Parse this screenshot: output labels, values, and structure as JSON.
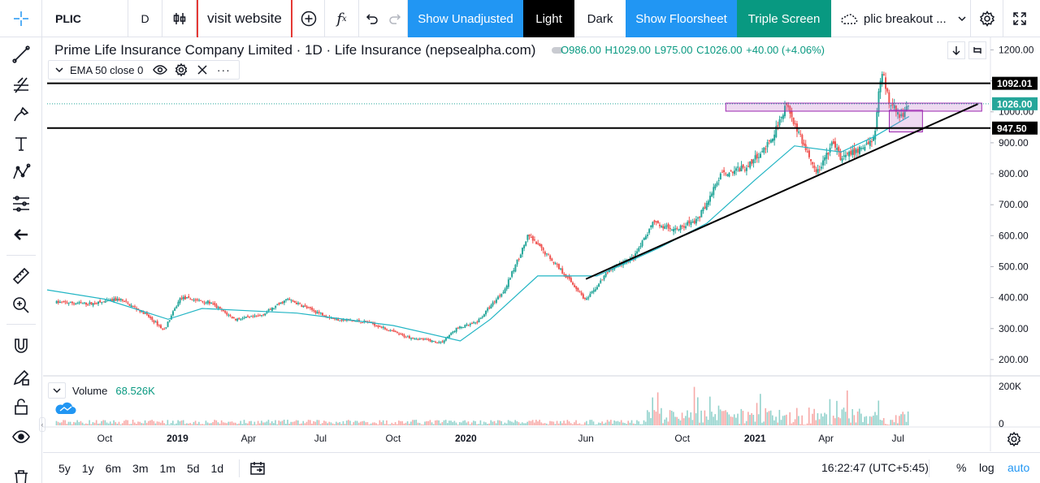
{
  "toolbar": {
    "symbol": "PLIC",
    "interval": "D",
    "visit_website": "visit website",
    "show_unadjusted": "Show Unadjusted",
    "light": "Light",
    "dark": "Dark",
    "show_floorsheet": "Show Floorsheet",
    "triple_screen": "Triple Screen",
    "layout_name": "plic breakout ...",
    "colors": {
      "blue": "#2196f3",
      "teal": "#089981",
      "black": "#000000"
    }
  },
  "left_tools": [
    "crosshair-icon",
    "trendline-icon",
    "fib-icon",
    "brush-icon",
    "text-icon",
    "pattern-icon",
    "prediction-icon",
    "back-arrow-icon",
    "ruler-icon",
    "zoom-icon",
    "magnet-icon",
    "lock-pencil-icon",
    "lock-icon",
    "eye-icon",
    "trash-icon"
  ],
  "legend": {
    "title": "Prime Life Insurance Company Limited · 1D · Life Insurance (nepsealpha.com)",
    "open": "O986.00",
    "high": "H1029.00",
    "low": "L975.00",
    "close": "C1026.00",
    "change": "+40.00 (+4.06%)",
    "ema_label": "EMA 50 close 0",
    "volume_label": "Volume",
    "volume_value": "68.526K"
  },
  "chart_data": {
    "type": "candlestick",
    "y_ticks": [
      1200,
      1100,
      1000,
      900,
      800,
      700,
      600,
      500,
      400,
      300,
      200
    ],
    "y_tick_labels": [
      "1200.00",
      "1100.00",
      "1000.00",
      "900.00",
      "800.00",
      "700.00",
      "600.00",
      "500.00",
      "400.00",
      "300.00",
      "200.00"
    ],
    "ylim": [
      150,
      1230
    ],
    "volume_ticks": [
      "200K",
      "0"
    ],
    "x_tick_labels": [
      "Oct",
      "2019",
      "Apr",
      "Jul",
      "Oct",
      "2020",
      "Jun",
      "Oct",
      "2021",
      "Apr",
      "Jul"
    ],
    "x_tick_dates": [
      "2018-10-01",
      "2019-01-01",
      "2019-04-01",
      "2019-07-01",
      "2019-10-01",
      "2020-01-01",
      "2020-06-01",
      "2020-10-01",
      "2021-01-01",
      "2021-04-01",
      "2021-07-01"
    ],
    "price_path": [
      [
        "2018-08-01",
        385
      ],
      [
        "2018-09-15",
        380
      ],
      [
        "2018-10-20",
        395
      ],
      [
        "2018-11-20",
        350
      ],
      [
        "2018-12-15",
        295
      ],
      [
        "2019-01-05",
        400
      ],
      [
        "2019-02-10",
        385
      ],
      [
        "2019-03-15",
        330
      ],
      [
        "2019-04-15",
        340
      ],
      [
        "2019-05-20",
        395
      ],
      [
        "2019-06-20",
        360
      ],
      [
        "2019-07-20",
        330
      ],
      [
        "2019-09-01",
        320
      ],
      [
        "2019-10-15",
        275
      ],
      [
        "2019-12-01",
        255
      ],
      [
        "2019-12-20",
        300
      ],
      [
        "2020-01-15",
        320
      ],
      [
        "2020-02-20",
        430
      ],
      [
        "2020-03-20",
        600
      ],
      [
        "2020-04-20",
        520
      ],
      [
        "2020-05-20",
        430
      ],
      [
        "2020-06-01",
        390
      ],
      [
        "2020-07-01",
        490
      ],
      [
        "2020-08-01",
        530
      ],
      [
        "2020-08-25",
        640
      ],
      [
        "2020-09-20",
        620
      ],
      [
        "2020-10-20",
        650
      ],
      [
        "2020-11-20",
        800
      ],
      [
        "2020-12-20",
        820
      ],
      [
        "2021-01-20",
        900
      ],
      [
        "2021-02-10",
        1029
      ],
      [
        "2021-02-25",
        930
      ],
      [
        "2021-03-20",
        800
      ],
      [
        "2021-04-10",
        900
      ],
      [
        "2021-04-20",
        850
      ],
      [
        "2021-05-15",
        880
      ],
      [
        "2021-06-01",
        920
      ],
      [
        "2021-06-10",
        1140
      ],
      [
        "2021-06-20",
        1030
      ],
      [
        "2021-07-05",
        985
      ],
      [
        "2021-07-15",
        1026
      ]
    ],
    "ema_50": [
      [
        "2018-07-20",
        425
      ],
      [
        "2018-10-01",
        395
      ],
      [
        "2018-12-20",
        330
      ],
      [
        "2019-02-01",
        365
      ],
      [
        "2019-06-01",
        350
      ],
      [
        "2019-10-01",
        310
      ],
      [
        "2019-12-25",
        260
      ],
      [
        "2020-02-01",
        330
      ],
      [
        "2020-04-01",
        470
      ],
      [
        "2020-06-15",
        470
      ],
      [
        "2020-09-01",
        560
      ],
      [
        "2020-11-01",
        640
      ],
      [
        "2021-01-01",
        780
      ],
      [
        "2021-02-20",
        890
      ],
      [
        "2021-04-20",
        870
      ],
      [
        "2021-06-01",
        920
      ],
      [
        "2021-07-15",
        985
      ]
    ],
    "drawings": {
      "horizontal_lines": [
        1092.01,
        947.5
      ],
      "horizontal_labels": [
        "1092.01",
        "947.50"
      ],
      "last_price": 1026.0,
      "last_price_label": "1026.00",
      "trendline": [
        [
          "2020-06-01",
          460
        ],
        [
          "2021-10-10",
          1025
        ]
      ],
      "resistance_box": {
        "from": "2020-11-25",
        "to": "2021-10-15",
        "low": 1002,
        "high": 1028
      },
      "consolidation_box": {
        "from": "2021-06-20",
        "to": "2021-08-01",
        "low": 935,
        "high": 1005
      }
    },
    "grid": true,
    "legend_position": "top-left"
  },
  "bottom": {
    "ranges": [
      "5y",
      "1y",
      "6m",
      "3m",
      "1m",
      "5d",
      "1d"
    ],
    "time": "16:22:47 (UTC+5:45)",
    "percent": "%",
    "log": "log",
    "auto": "auto"
  }
}
